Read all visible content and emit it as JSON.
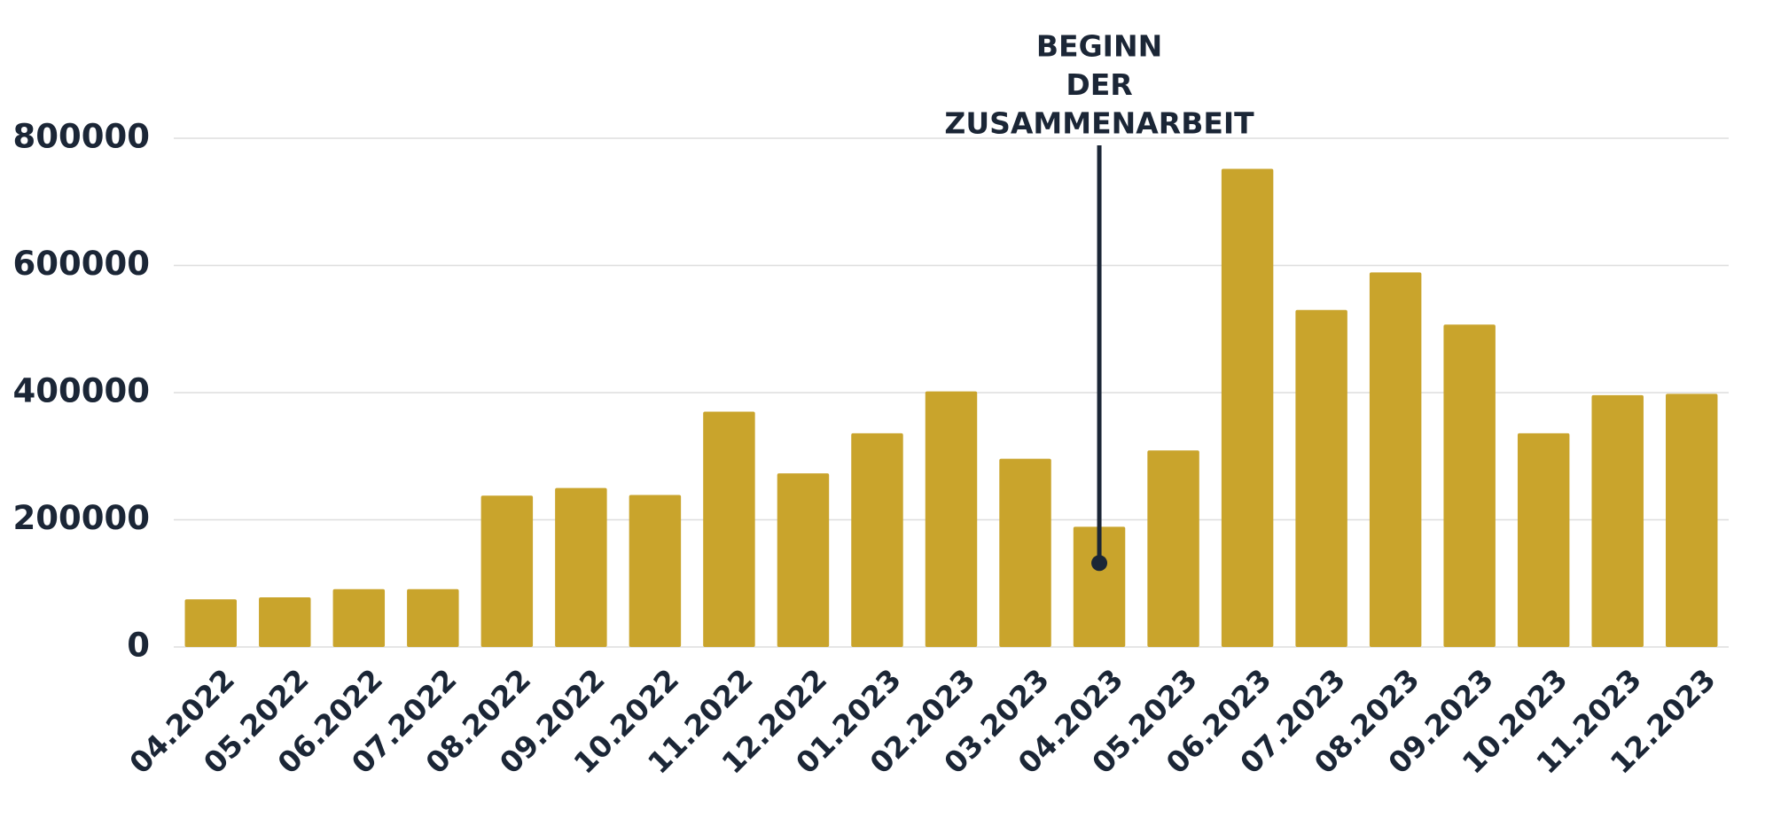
{
  "chart_data": {
    "type": "bar",
    "categories": [
      "04.2022",
      "05.2022",
      "06.2022",
      "07.2022",
      "08.2022",
      "09.2022",
      "10.2022",
      "11.2022",
      "12.2022",
      "01.2023",
      "02.2023",
      "03.2023",
      "04.2023",
      "05.2023",
      "06.2023",
      "07.2023",
      "08.2023",
      "09.2023",
      "10.2023",
      "11.2023",
      "12.2023"
    ],
    "values": [
      75000,
      78000,
      91000,
      91000,
      238000,
      250000,
      239000,
      370000,
      273000,
      336000,
      402000,
      296000,
      189000,
      309000,
      752000,
      530000,
      589000,
      507000,
      336000,
      396000,
      398000
    ],
    "color": "#c9a42c",
    "ylim": [
      0,
      800000
    ],
    "yticks": [
      0,
      200000,
      400000,
      600000,
      800000
    ],
    "grid": true,
    "annotation": {
      "text": [
        "BEGINN",
        "DER",
        "ZUSAMMENARBEIT"
      ],
      "x": "04.2023",
      "y": 132000
    }
  }
}
